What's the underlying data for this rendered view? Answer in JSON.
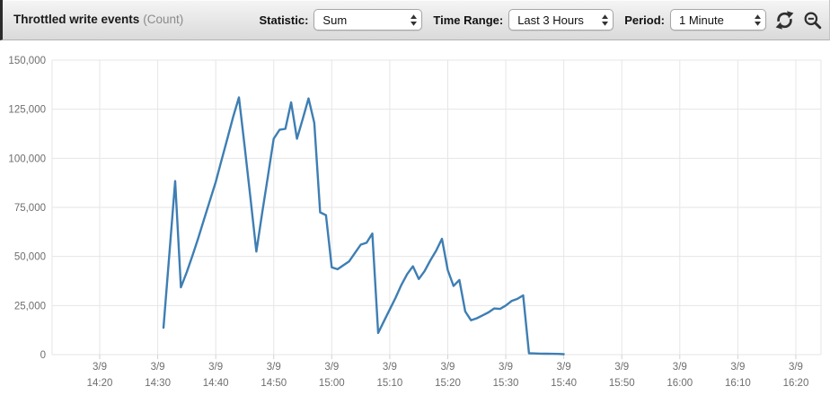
{
  "header": {
    "title": "Throttled write events",
    "unit": "(Count)",
    "controls": {
      "statistic": {
        "label": "Statistic:",
        "value": "Sum"
      },
      "time_range": {
        "label": "Time Range:",
        "value": "Last 3 Hours"
      },
      "period": {
        "label": "Period:",
        "value": "1 Minute"
      }
    },
    "icons": [
      {
        "name": "refresh-icon"
      },
      {
        "name": "zoom-out-icon"
      },
      {
        "name": "select-stepper-icon"
      }
    ]
  },
  "colors": {
    "line": "#3e7eb3",
    "grid": "#e6e6e6",
    "axis_text": "#6e6e6e",
    "tick_stub": "#d2d2d2"
  },
  "chart_data": {
    "type": "line",
    "title": "Throttled write events",
    "ylabel": "Count",
    "ylim": [
      0,
      150000
    ],
    "grid": true,
    "legend": "none",
    "yticks": [
      {
        "v": 150000,
        "label": "150,000"
      },
      {
        "v": 125000,
        "label": "125,000"
      },
      {
        "v": 100000,
        "label": "100,000"
      },
      {
        "v": 75000,
        "label": "75,000"
      },
      {
        "v": 50000,
        "label": "50,000"
      },
      {
        "v": 25000,
        "label": "25,000"
      },
      {
        "v": 0,
        "label": "0"
      }
    ],
    "x_axis": {
      "tick_spacing_minutes": 10,
      "ticks": [
        {
          "date": "3/9",
          "time": "14:20"
        },
        {
          "date": "3/9",
          "time": "14:30"
        },
        {
          "date": "3/9",
          "time": "14:40"
        },
        {
          "date": "3/9",
          "time": "14:50"
        },
        {
          "date": "3/9",
          "time": "15:00"
        },
        {
          "date": "3/9",
          "time": "15:10"
        },
        {
          "date": "3/9",
          "time": "15:20"
        },
        {
          "date": "3/9",
          "time": "15:30"
        },
        {
          "date": "3/9",
          "time": "15:40"
        },
        {
          "date": "3/9",
          "time": "15:50"
        },
        {
          "date": "3/9",
          "time": "16:00"
        },
        {
          "date": "3/9",
          "time": "16:10"
        },
        {
          "date": "3/9",
          "time": "16:20"
        }
      ]
    },
    "series": [
      {
        "name": "Throttled write events",
        "color": "#3e7eb3",
        "points": [
          {
            "t": "14:31",
            "v": 13700
          },
          {
            "t": "14:32",
            "v": 51000
          },
          {
            "t": "14:33",
            "v": 88400
          },
          {
            "t": "14:34",
            "v": 34300
          },
          {
            "t": "14:35",
            "v": 42000
          },
          {
            "t": "14:36",
            "v": 50500
          },
          {
            "t": "14:37",
            "v": 59500
          },
          {
            "t": "14:38",
            "v": 69000
          },
          {
            "t": "14:39",
            "v": 78500
          },
          {
            "t": "14:40",
            "v": 88000
          },
          {
            "t": "14:41",
            "v": 99000
          },
          {
            "t": "14:42",
            "v": 110000
          },
          {
            "t": "14:43",
            "v": 121000
          },
          {
            "t": "14:44",
            "v": 131000
          },
          {
            "t": "14:45",
            "v": 105500
          },
          {
            "t": "14:46",
            "v": 79500
          },
          {
            "t": "14:47",
            "v": 52500
          },
          {
            "t": "14:48",
            "v": 72000
          },
          {
            "t": "14:49",
            "v": 91000
          },
          {
            "t": "14:50",
            "v": 110000
          },
          {
            "t": "14:51",
            "v": 114500
          },
          {
            "t": "14:52",
            "v": 115000
          },
          {
            "t": "14:53",
            "v": 128500
          },
          {
            "t": "14:54",
            "v": 110000
          },
          {
            "t": "14:55",
            "v": 120000
          },
          {
            "t": "14:56",
            "v": 130500
          },
          {
            "t": "14:57",
            "v": 118000
          },
          {
            "t": "14:58",
            "v": 72500
          },
          {
            "t": "14:59",
            "v": 71000
          },
          {
            "t": "15:00",
            "v": 44500
          },
          {
            "t": "15:01",
            "v": 43500
          },
          {
            "t": "15:02",
            "v": 45500
          },
          {
            "t": "15:03",
            "v": 47500
          },
          {
            "t": "15:04",
            "v": 51800
          },
          {
            "t": "15:05",
            "v": 56000
          },
          {
            "t": "15:06",
            "v": 57000
          },
          {
            "t": "15:07",
            "v": 61700
          },
          {
            "t": "15:08",
            "v": 11000
          },
          {
            "t": "15:09",
            "v": 17000
          },
          {
            "t": "15:10",
            "v": 23000
          },
          {
            "t": "15:11",
            "v": 29000
          },
          {
            "t": "15:12",
            "v": 35500
          },
          {
            "t": "15:13",
            "v": 41000
          },
          {
            "t": "15:14",
            "v": 45000
          },
          {
            "t": "15:15",
            "v": 38500
          },
          {
            "t": "15:16",
            "v": 42500
          },
          {
            "t": "15:17",
            "v": 48000
          },
          {
            "t": "15:18",
            "v": 53000
          },
          {
            "t": "15:19",
            "v": 59000
          },
          {
            "t": "15:20",
            "v": 43000
          },
          {
            "t": "15:21",
            "v": 35000
          },
          {
            "t": "15:22",
            "v": 38000
          },
          {
            "t": "15:23",
            "v": 22000
          },
          {
            "t": "15:24",
            "v": 17500
          },
          {
            "t": "15:25",
            "v": 18500
          },
          {
            "t": "15:26",
            "v": 20000
          },
          {
            "t": "15:27",
            "v": 21500
          },
          {
            "t": "15:28",
            "v": 23500
          },
          {
            "t": "15:29",
            "v": 23300
          },
          {
            "t": "15:30",
            "v": 25000
          },
          {
            "t": "15:31",
            "v": 27300
          },
          {
            "t": "15:32",
            "v": 28400
          },
          {
            "t": "15:33",
            "v": 30200
          },
          {
            "t": "15:34",
            "v": 700
          },
          {
            "t": "15:35",
            "v": 600
          },
          {
            "t": "15:36",
            "v": 500
          },
          {
            "t": "15:37",
            "v": 450
          },
          {
            "t": "15:38",
            "v": 400
          },
          {
            "t": "15:39",
            "v": 350
          },
          {
            "t": "15:40",
            "v": 250
          }
        ]
      }
    ]
  }
}
